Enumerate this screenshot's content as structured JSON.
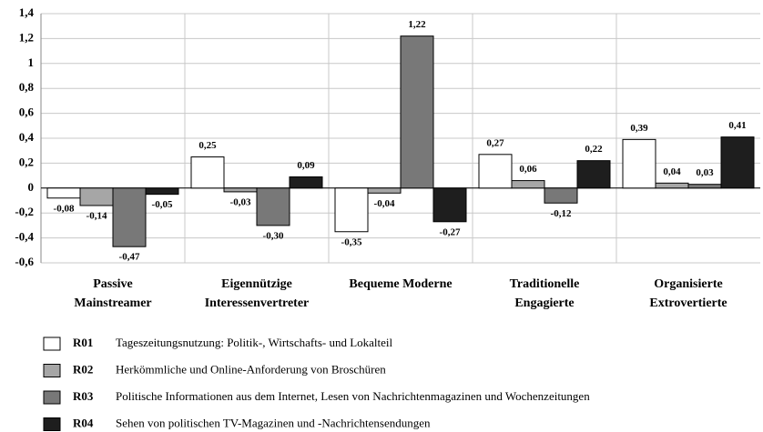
{
  "chart_data": {
    "type": "bar",
    "categories": [
      [
        "Passive",
        "Mainstreamer"
      ],
      [
        "Eigennützige",
        "Interessenvertreter"
      ],
      [
        "Bequeme   Moderne"
      ],
      [
        "Traditionelle",
        "Engagierte"
      ],
      [
        "Organisierte",
        "Extrovertierte"
      ]
    ],
    "series": [
      {
        "name": "R01",
        "description": "Tageszeitungsnutzung: Politik-, Wirtschafts- und Lokalteil",
        "color": "#ffffff",
        "values": [
          -0.08,
          0.25,
          -0.35,
          0.27,
          0.39
        ],
        "value_labels": [
          "-0,08",
          "0,25",
          "-0,35",
          "0,27",
          "0,39"
        ]
      },
      {
        "name": "R02",
        "description": "Herkömmliche und Online-Anforderung von Broschüren",
        "color": "#a6a6a6",
        "values": [
          -0.14,
          -0.03,
          -0.04,
          0.06,
          0.04
        ],
        "value_labels": [
          "-0,14",
          "-0,03",
          "-0,04",
          "0,06",
          "0,04"
        ]
      },
      {
        "name": "R03",
        "description": "Politische Informationen aus dem Internet, Lesen von Nachrichtenmagazinen und Wochenzeitungen",
        "color": "#787878",
        "values": [
          -0.47,
          -0.3,
          1.22,
          -0.12,
          0.03
        ],
        "value_labels": [
          "-0,47",
          "-0,30",
          "1,22",
          "-0,12",
          "0,03"
        ]
      },
      {
        "name": "R04",
        "description": "Sehen von politischen TV-Magazinen und -Nachrichtensendungen",
        "color": "#1e1e1e",
        "values": [
          -0.05,
          0.09,
          -0.27,
          0.22,
          0.41
        ],
        "value_labels": [
          "-0,05",
          "0,09",
          "-0,27",
          "0,22",
          "0,41"
        ]
      }
    ],
    "ylim": [
      -0.6,
      1.4
    ],
    "yticks": [
      {
        "value": -0.6,
        "label": "-0,6"
      },
      {
        "value": -0.4,
        "label": "-0,4"
      },
      {
        "value": -0.2,
        "label": "-0,2"
      },
      0,
      {
        "value": 0.2,
        "label": "0,2"
      },
      {
        "value": 0.4,
        "label": "0,4"
      },
      {
        "value": 0.6,
        "label": "0,6"
      },
      {
        "value": 0.8,
        "label": "0,8"
      },
      1,
      {
        "value": 1.2,
        "label": "1,2"
      },
      {
        "value": 1.4,
        "label": "1,4"
      }
    ],
    "grid": true
  }
}
